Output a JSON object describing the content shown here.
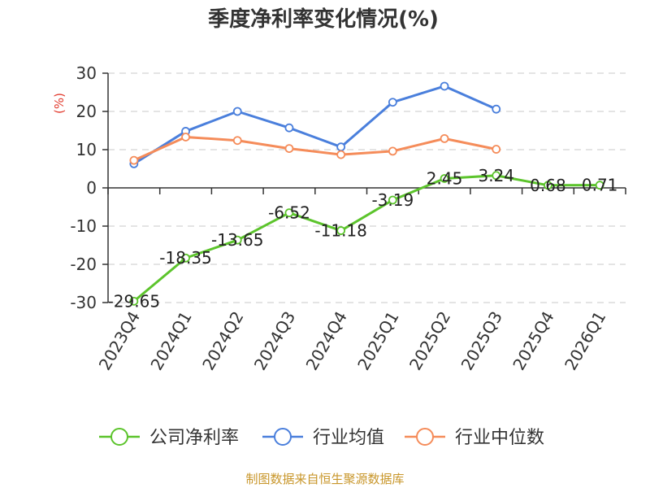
{
  "chart_data": {
    "type": "line",
    "title": "季度净利率变化情况(%)",
    "ylabel": "(%)",
    "xlabel": "",
    "categories": [
      "2023Q4",
      "2024Q1",
      "2024Q2",
      "2024Q3",
      "2024Q4",
      "2025Q1",
      "2025Q2",
      "2025Q3",
      "2025Q4",
      "2026Q1"
    ],
    "ylim": [
      -30,
      30
    ],
    "yticks": [
      30,
      20,
      10,
      0,
      -10,
      -20,
      -30
    ],
    "grid": true,
    "legend_position": "bottom",
    "series": [
      {
        "name": "公司净利率",
        "color": "#5cc42c",
        "values": [
          -29.65,
          -18.35,
          -13.65,
          -6.52,
          -11.18,
          -3.19,
          2.45,
          3.24,
          0.68,
          0.71
        ],
        "labels": [
          "-29.65",
          "-18.35",
          "-13.65",
          "-6.52",
          "-11.18",
          "-3.19",
          "2.45",
          "3.24",
          "0.68",
          "0.71"
        ]
      },
      {
        "name": "行业均值",
        "color": "#4a7fdc",
        "values": [
          6.3,
          14.8,
          20.0,
          15.7,
          10.7,
          22.4,
          26.6,
          20.6,
          null,
          null
        ]
      },
      {
        "name": "行业中位数",
        "color": "#f58c5a",
        "values": [
          7.2,
          13.3,
          12.4,
          10.3,
          8.7,
          9.6,
          12.9,
          10.1,
          null,
          null
        ]
      }
    ]
  },
  "source": "制图数据来自恒生聚源数据库"
}
